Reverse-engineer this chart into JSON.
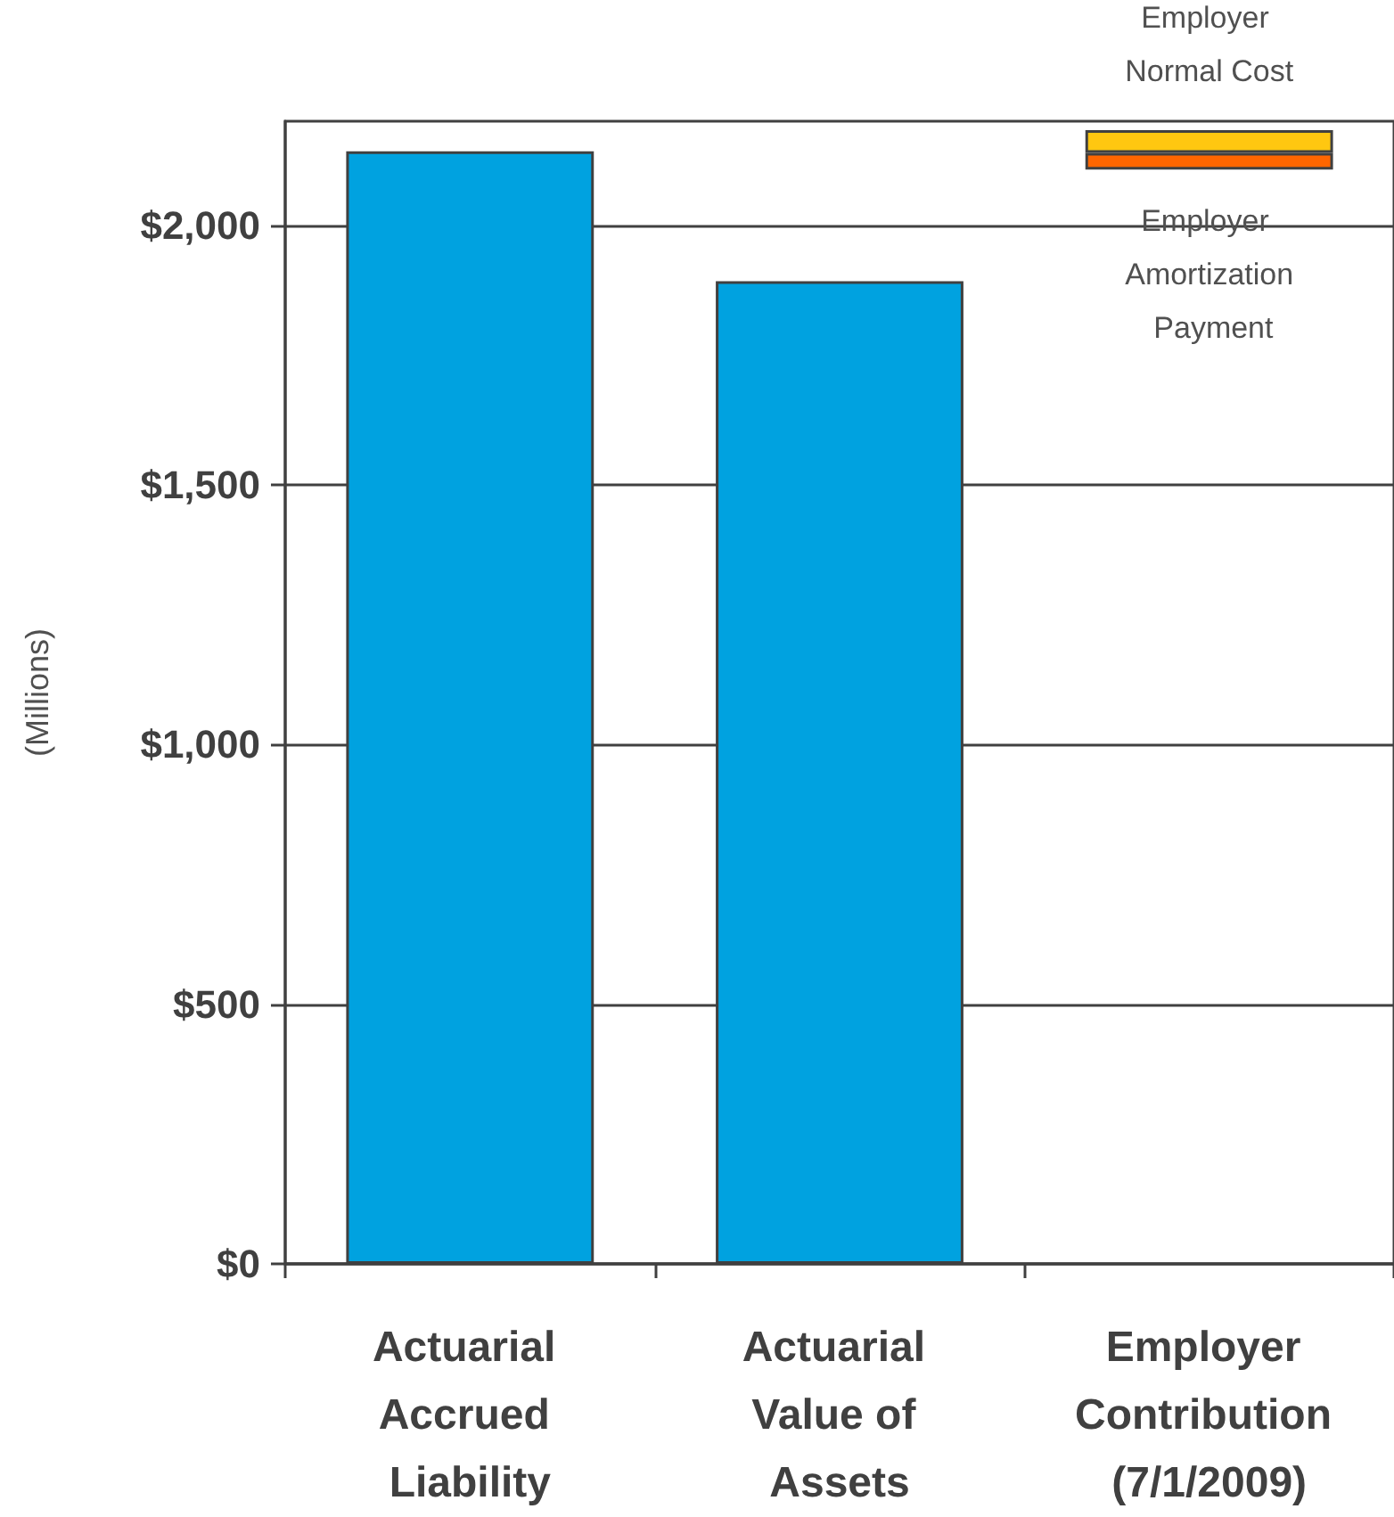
{
  "chart_data": {
    "type": "bar",
    "ylabel": "(Millions)",
    "categories": [
      "Actuarial Accrued Liability",
      "Actuarial Value of Assets",
      "Employer Contribution (7/1/2009)"
    ],
    "series": [
      {
        "color": "#00a2e0",
        "values": [
          2142,
          1892,
          null
        ]
      },
      {
        "name": "Employer Amortization Payment",
        "color": "#ff6600",
        "values": [
          null,
          null,
          32
        ],
        "base": [
          null,
          null,
          2107
        ]
      },
      {
        "name": "Employer Normal Cost",
        "color": "#ffc710",
        "values": [
          null,
          null,
          44
        ],
        "base": [
          null,
          null,
          2139
        ]
      }
    ],
    "ylim": [
      0,
      2200
    ],
    "yticks": [
      {
        "value": 0,
        "label": "$0"
      },
      {
        "value": 500,
        "label": "$500"
      },
      {
        "value": 1000,
        "label": "$1,000"
      },
      {
        "value": 1500,
        "label": "$1,500"
      },
      {
        "value": 2000,
        "label": "$2,000"
      }
    ],
    "grid": "y",
    "legend": false
  }
}
